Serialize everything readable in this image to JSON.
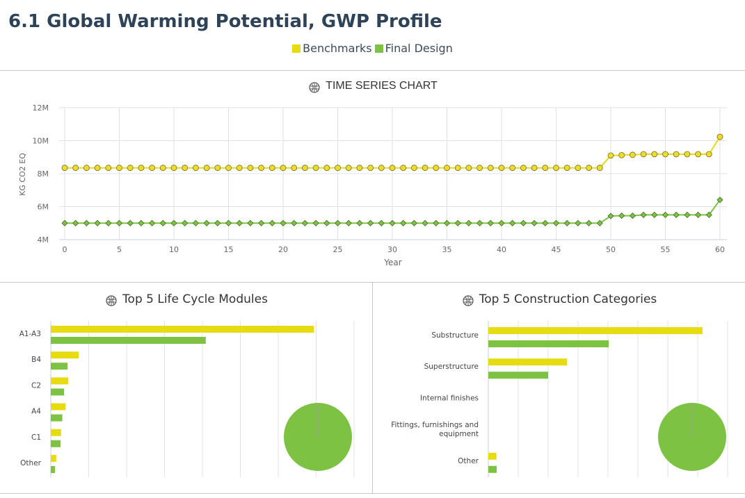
{
  "page_title": "6.1 Global Warming Potential, GWP Profile",
  "colors": {
    "benchmark": "#e6dc11",
    "final": "#7dc242",
    "benchmark_marker": "#eedb2c",
    "final_marker": "#7dc242"
  },
  "legend": [
    {
      "label": "Benchmarks",
      "color": "#e6dc11"
    },
    {
      "label": "Final Design",
      "color": "#7dc242"
    }
  ],
  "chart_data": [
    {
      "type": "line",
      "title": "TIME SERIES CHART",
      "icon": "globe-fire-icon",
      "xlabel": "Year",
      "ylabel": "KG CO2 EQ",
      "xlim": [
        0,
        60
      ],
      "ylim": [
        4000000,
        12000000
      ],
      "xticks": [
        "0",
        "5",
        "10",
        "15",
        "20",
        "25",
        "30",
        "35",
        "40",
        "45",
        "50",
        "55",
        "60"
      ],
      "yticks": [
        "4M",
        "6M",
        "8M",
        "10M",
        "12M"
      ],
      "grid": true,
      "x": [
        0,
        1,
        2,
        3,
        4,
        5,
        6,
        7,
        8,
        9,
        10,
        11,
        12,
        13,
        14,
        15,
        16,
        17,
        18,
        19,
        20,
        21,
        22,
        23,
        24,
        25,
        26,
        27,
        28,
        29,
        30,
        31,
        32,
        33,
        34,
        35,
        36,
        37,
        38,
        39,
        40,
        41,
        42,
        43,
        44,
        45,
        46,
        47,
        48,
        49,
        50,
        51,
        52,
        53,
        54,
        55,
        56,
        57,
        58,
        59,
        60
      ],
      "series": [
        {
          "name": "Benchmarks",
          "values": [
            8350000,
            8350000,
            8350000,
            8350000,
            8350000,
            8350000,
            8350000,
            8350000,
            8350000,
            8350000,
            8350000,
            8350000,
            8350000,
            8350000,
            8350000,
            8350000,
            8350000,
            8350000,
            8350000,
            8350000,
            8350000,
            8350000,
            8350000,
            8350000,
            8350000,
            8350000,
            8350000,
            8350000,
            8350000,
            8350000,
            8350000,
            8350000,
            8350000,
            8350000,
            8350000,
            8350000,
            8350000,
            8350000,
            8350000,
            8350000,
            8350000,
            8350000,
            8350000,
            8350000,
            8350000,
            8350000,
            8350000,
            8350000,
            8350000,
            8350000,
            9100000,
            9120000,
            9140000,
            9180000,
            9180000,
            9180000,
            9180000,
            9180000,
            9180000,
            9180000,
            10230000
          ]
        },
        {
          "name": "Final Design",
          "values": [
            5000000,
            5000000,
            5000000,
            5000000,
            5000000,
            5000000,
            5000000,
            5000000,
            5000000,
            5000000,
            5000000,
            5000000,
            5000000,
            5000000,
            5000000,
            5000000,
            5000000,
            5000000,
            5000000,
            5000000,
            5000000,
            5000000,
            5000000,
            5000000,
            5000000,
            5000000,
            5000000,
            5000000,
            5000000,
            5000000,
            5000000,
            5000000,
            5000000,
            5000000,
            5000000,
            5000000,
            5000000,
            5000000,
            5000000,
            5000000,
            5000000,
            5000000,
            5000000,
            5000000,
            5000000,
            5000000,
            5000000,
            5000000,
            5000000,
            5000000,
            5430000,
            5450000,
            5450000,
            5500000,
            5500000,
            5500000,
            5500000,
            5500000,
            5500000,
            5500000,
            6410000
          ]
        }
      ]
    },
    {
      "type": "bar",
      "title": "Top 5 Life Cycle Modules",
      "icon": "globe-fire-icon",
      "orientation": "horizontal",
      "categories": [
        "A1-A3",
        "B4",
        "C2",
        "A4",
        "C1",
        "Other"
      ],
      "xlim": [
        0,
        1
      ],
      "grid": true,
      "series": [
        {
          "name": "Benchmarks",
          "values": [
            0.868,
            0.092,
            0.058,
            0.049,
            0.034,
            0.018
          ]
        },
        {
          "name": "Final Design",
          "values": [
            0.511,
            0.055,
            0.044,
            0.038,
            0.032,
            0.014
          ]
        }
      ],
      "pie": {
        "type": "pie",
        "values": [
          100
        ],
        "color": "#7dc242"
      }
    },
    {
      "type": "bar",
      "title": "Top 5 Construction Categories",
      "icon": "globe-fire-icon",
      "orientation": "horizontal",
      "categories": [
        [
          "Substructure"
        ],
        [
          "Superstructure"
        ],
        [
          "Internal finishes"
        ],
        [
          "Fittings, furnishings and",
          "equipment"
        ],
        [
          "Other"
        ]
      ],
      "xlim": [
        0,
        1
      ],
      "grid": true,
      "series": [
        {
          "name": "Benchmarks",
          "values": [
            0.895,
            0.329,
            0.0,
            0.0,
            0.034
          ]
        },
        {
          "name": "Final Design",
          "values": [
            0.503,
            0.25,
            0.0,
            0.0,
            0.035
          ]
        }
      ],
      "pie": {
        "type": "pie",
        "values": [
          100
        ],
        "color": "#7dc242"
      }
    }
  ]
}
